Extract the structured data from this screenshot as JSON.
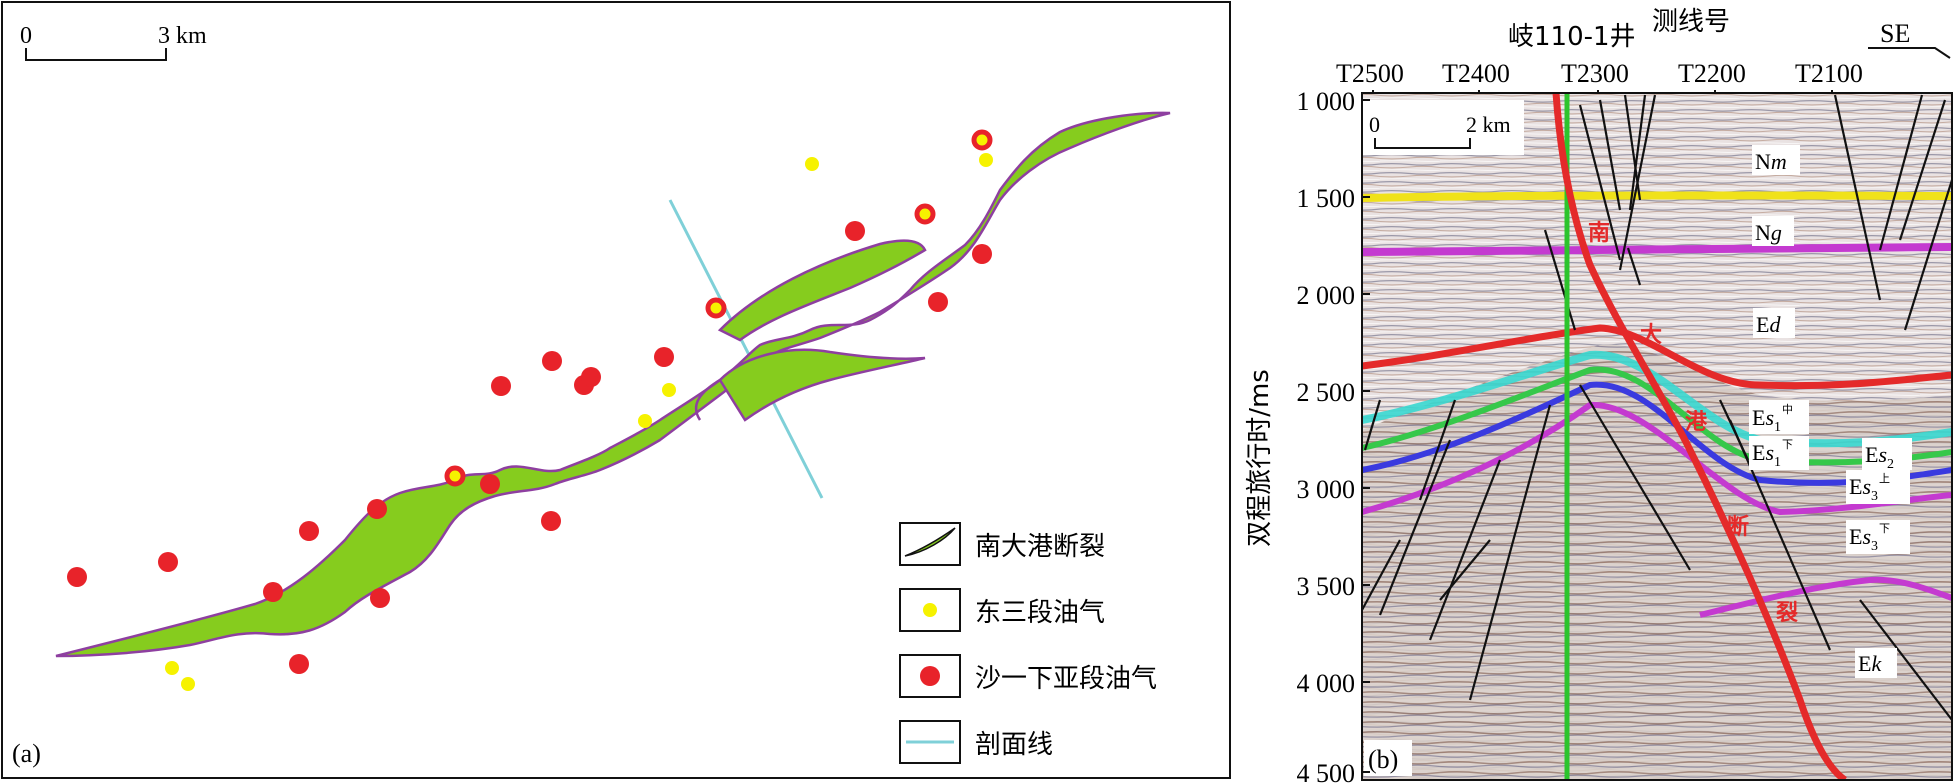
{
  "panel_a": {
    "label": "(a)",
    "scale": {
      "zero": "0",
      "end": "3 km"
    },
    "legend": [
      {
        "key": "fault",
        "label": "南大港断裂"
      },
      {
        "key": "dongsan",
        "label": "东三段油气"
      },
      {
        "key": "shayi",
        "label": "沙一下亚段油气"
      },
      {
        "key": "section",
        "label": "剖面线"
      }
    ],
    "colors": {
      "fault_fill": "#86cc1e",
      "fault_edge": "#8e3fa0",
      "dongsan": "#f6f200",
      "shayi": "#e8232a",
      "section": "#7fd0d8"
    }
  },
  "panel_b": {
    "label": "(b)",
    "well": "岐110-1井",
    "survey_title": "测线号",
    "direction": "SE",
    "trace_labels": [
      "T2500",
      "T2400",
      "T2300",
      "T2200",
      "T2100"
    ],
    "y_axis_label": "双程旅行时/ms",
    "y_ticks": [
      "1 000",
      "1 500",
      "2 000",
      "2 500",
      "3 000",
      "3 500",
      "4 000",
      "4 500"
    ],
    "scale": {
      "zero": "0",
      "end": "2 km"
    },
    "fault_chars": [
      "南",
      "大",
      "港",
      "断",
      "裂"
    ],
    "horizons": [
      {
        "base": "N",
        "italic": "m",
        "sub": "",
        "sup": ""
      },
      {
        "base": "N",
        "italic": "g",
        "sub": "",
        "sup": ""
      },
      {
        "base": "E",
        "italic": "d",
        "sub": "",
        "sup": ""
      },
      {
        "base": "E",
        "italic": "s",
        "sub": "1",
        "sup": "中"
      },
      {
        "base": "E",
        "italic": "s",
        "sub": "1",
        "sup": "下"
      },
      {
        "base": "E",
        "italic": "s",
        "sub": "2",
        "sup": ""
      },
      {
        "base": "E",
        "italic": "s",
        "sub": "3",
        "sup": "上"
      },
      {
        "base": "E",
        "italic": "s",
        "sub": "3",
        "sup": "下"
      },
      {
        "base": "E",
        "italic": "k",
        "sub": "",
        "sup": ""
      }
    ],
    "colors": {
      "yellow": "#f0e21a",
      "magenta": "#c43ad0",
      "red": "#e42a2a",
      "cyan": "#38d8d0",
      "blue": "#3a3adf",
      "green": "#36c84a",
      "purple": "#7a2ab8",
      "fault": "#e42a2a",
      "well": "#2cc42c"
    }
  }
}
